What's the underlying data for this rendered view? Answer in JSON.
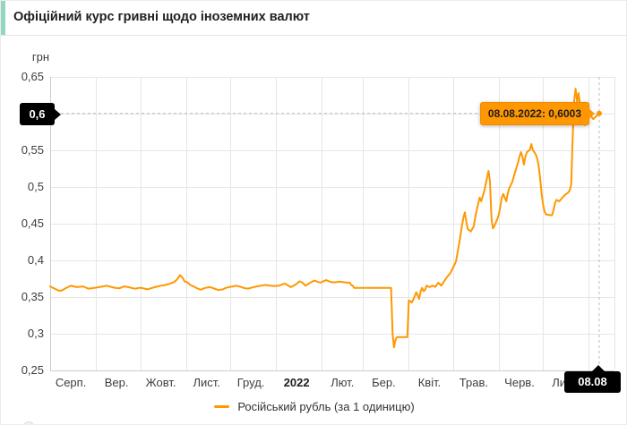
{
  "header": {
    "title": "Офіційний курс гривні щодо іноземних валют",
    "accent_color": "#93d7c2"
  },
  "crosshair": {
    "y_label": "0,6",
    "x_label": "08.08"
  },
  "tooltip": {
    "text": "08.08.2022: 0,6003",
    "bg_color": "#ff9800"
  },
  "legend": {
    "label": "Російський рубль (за 1 одиницю)",
    "color": "#ff9800"
  },
  "chart_data": {
    "type": "line",
    "title": "Офіційний курс гривні щодо іноземних валют",
    "ylabel": "грн",
    "xlabel": "",
    "ylim": [
      0.25,
      0.65
    ],
    "grid": true,
    "legend_position": "bottom",
    "x_unit": "days since 01.08.2021",
    "y_ticks": [
      {
        "v": 0.65,
        "label": "0,65"
      },
      {
        "v": 0.6,
        "label": "0,6"
      },
      {
        "v": 0.55,
        "label": "0,55"
      },
      {
        "v": 0.5,
        "label": "0,5"
      },
      {
        "v": 0.45,
        "label": "0,45"
      },
      {
        "v": 0.4,
        "label": "0,4"
      },
      {
        "v": 0.35,
        "label": "0,35"
      },
      {
        "v": 0.3,
        "label": "0,3"
      },
      {
        "v": 0.25,
        "label": "0,25"
      }
    ],
    "x_ticks": [
      {
        "day": 14,
        "label": "Серп."
      },
      {
        "day": 45,
        "label": "Вер."
      },
      {
        "day": 75,
        "label": "Жовт."
      },
      {
        "day": 106,
        "label": "Лист."
      },
      {
        "day": 136,
        "label": "Груд."
      },
      {
        "day": 167,
        "label": "2022",
        "bold": true
      },
      {
        "day": 198,
        "label": "Лют."
      },
      {
        "day": 226,
        "label": "Бер."
      },
      {
        "day": 257,
        "label": "Квіт."
      },
      {
        "day": 287,
        "label": "Трав."
      },
      {
        "day": 318,
        "label": "Черв."
      },
      {
        "day": 348,
        "label": "Лип."
      }
    ],
    "x_gridline_days": [
      31,
      61,
      92,
      122,
      153,
      184,
      212,
      243,
      273,
      304,
      334,
      365
    ],
    "final_point": {
      "date": "08.08.2022",
      "value": 0.6003,
      "day": 372
    },
    "series": [
      {
        "name": "Російський рубль (за 1 одиницю)",
        "color": "#ff9800",
        "points": [
          [
            0,
            0.3645
          ],
          [
            2,
            0.3625
          ],
          [
            4,
            0.3605
          ],
          [
            6,
            0.3585
          ],
          [
            8,
            0.359
          ],
          [
            10,
            0.3615
          ],
          [
            12,
            0.3635
          ],
          [
            14,
            0.3655
          ],
          [
            16,
            0.3645
          ],
          [
            18,
            0.3635
          ],
          [
            20,
            0.364
          ],
          [
            22,
            0.3645
          ],
          [
            24,
            0.363
          ],
          [
            26,
            0.3615
          ],
          [
            28,
            0.362
          ],
          [
            30,
            0.3625
          ],
          [
            33,
            0.3635
          ],
          [
            36,
            0.3645
          ],
          [
            38,
            0.3655
          ],
          [
            41,
            0.364
          ],
          [
            44,
            0.3625
          ],
          [
            47,
            0.362
          ],
          [
            50,
            0.3645
          ],
          [
            53,
            0.3635
          ],
          [
            56,
            0.362
          ],
          [
            58,
            0.3615
          ],
          [
            60,
            0.3625
          ],
          [
            62,
            0.3625
          ],
          [
            64,
            0.3615
          ],
          [
            66,
            0.3605
          ],
          [
            69,
            0.3625
          ],
          [
            72,
            0.364
          ],
          [
            75,
            0.3655
          ],
          [
            78,
            0.3665
          ],
          [
            81,
            0.368
          ],
          [
            84,
            0.3705
          ],
          [
            86,
            0.374
          ],
          [
            88,
            0.38
          ],
          [
            90,
            0.3755
          ],
          [
            91,
            0.3715
          ],
          [
            93,
            0.37
          ],
          [
            95,
            0.3665
          ],
          [
            98,
            0.3635
          ],
          [
            100,
            0.3615
          ],
          [
            102,
            0.36
          ],
          [
            105,
            0.3625
          ],
          [
            108,
            0.3635
          ],
          [
            110,
            0.3625
          ],
          [
            112,
            0.361
          ],
          [
            114,
            0.3595
          ],
          [
            117,
            0.3605
          ],
          [
            119,
            0.3625
          ],
          [
            121,
            0.3635
          ],
          [
            124,
            0.3645
          ],
          [
            126,
            0.3655
          ],
          [
            129,
            0.364
          ],
          [
            131,
            0.3625
          ],
          [
            134,
            0.3615
          ],
          [
            137,
            0.363
          ],
          [
            140,
            0.3645
          ],
          [
            143,
            0.3655
          ],
          [
            146,
            0.3665
          ],
          [
            149,
            0.3655
          ],
          [
            152,
            0.365
          ],
          [
            155,
            0.3655
          ],
          [
            157,
            0.367
          ],
          [
            159,
            0.3685
          ],
          [
            161,
            0.366
          ],
          [
            163,
            0.3635
          ],
          [
            165,
            0.3655
          ],
          [
            167,
            0.368
          ],
          [
            169,
            0.3715
          ],
          [
            171,
            0.3695
          ],
          [
            173,
            0.3655
          ],
          [
            175,
            0.368
          ],
          [
            177,
            0.3705
          ],
          [
            179,
            0.3725
          ],
          [
            181,
            0.371
          ],
          [
            183,
            0.3695
          ],
          [
            185,
            0.3715
          ],
          [
            187,
            0.373
          ],
          [
            189,
            0.3715
          ],
          [
            191,
            0.37
          ],
          [
            194,
            0.3705
          ],
          [
            196,
            0.371
          ],
          [
            198,
            0.3705
          ],
          [
            200,
            0.37
          ],
          [
            203,
            0.3695
          ],
          [
            204,
            0.3665
          ],
          [
            205,
            0.3655
          ],
          [
            206,
            0.3625
          ],
          [
            231,
            0.3625
          ],
          [
            232,
            0.3
          ],
          [
            233,
            0.2815
          ],
          [
            234,
            0.292
          ],
          [
            235,
            0.2955
          ],
          [
            242,
            0.2955
          ],
          [
            243,
            0.3455
          ],
          [
            244,
            0.344
          ],
          [
            245,
            0.3425
          ],
          [
            246,
            0.3465
          ],
          [
            248,
            0.3565
          ],
          [
            249,
            0.3525
          ],
          [
            250,
            0.3475
          ],
          [
            251,
            0.3575
          ],
          [
            252,
            0.3625
          ],
          [
            253,
            0.358
          ],
          [
            254,
            0.3595
          ],
          [
            255,
            0.3655
          ],
          [
            257,
            0.3635
          ],
          [
            259,
            0.3655
          ],
          [
            261,
            0.364
          ],
          [
            263,
            0.3695
          ],
          [
            265,
            0.3655
          ],
          [
            267,
            0.372
          ],
          [
            269,
            0.3775
          ],
          [
            271,
            0.3825
          ],
          [
            273,
            0.39
          ],
          [
            275,
            0.3985
          ],
          [
            277,
            0.421
          ],
          [
            279,
            0.447
          ],
          [
            280,
            0.4585
          ],
          [
            281,
            0.4655
          ],
          [
            282,
            0.452
          ],
          [
            283,
            0.4425
          ],
          [
            285,
            0.4395
          ],
          [
            287,
            0.4465
          ],
          [
            288,
            0.4585
          ],
          [
            289,
            0.4685
          ],
          [
            290,
            0.4775
          ],
          [
            291,
            0.4855
          ],
          [
            292,
            0.4805
          ],
          [
            293,
            0.487
          ],
          [
            294,
            0.4935
          ],
          [
            295,
            0.503
          ],
          [
            297,
            0.522
          ],
          [
            298,
            0.5075
          ],
          [
            299,
            0.4575
          ],
          [
            300,
            0.4435
          ],
          [
            301,
            0.447
          ],
          [
            303,
            0.4565
          ],
          [
            304,
            0.4625
          ],
          [
            305,
            0.4735
          ],
          [
            306,
            0.4855
          ],
          [
            307,
            0.4905
          ],
          [
            308,
            0.4855
          ],
          [
            309,
            0.4805
          ],
          [
            310,
            0.4905
          ],
          [
            311,
            0.4985
          ],
          [
            313,
            0.5065
          ],
          [
            315,
            0.5205
          ],
          [
            317,
            0.5335
          ],
          [
            318,
            0.5415
          ],
          [
            319,
            0.5475
          ],
          [
            320,
            0.5415
          ],
          [
            321,
            0.5305
          ],
          [
            322,
            0.5415
          ],
          [
            323,
            0.5475
          ],
          [
            325,
            0.5505
          ],
          [
            326,
            0.5585
          ],
          [
            327,
            0.5505
          ],
          [
            328,
            0.5475
          ],
          [
            329,
            0.5445
          ],
          [
            330,
            0.5385
          ],
          [
            331,
            0.5285
          ],
          [
            332,
            0.5105
          ],
          [
            333,
            0.4905
          ],
          [
            334,
            0.4755
          ],
          [
            335,
            0.4665
          ],
          [
            336,
            0.4625
          ],
          [
            340,
            0.4615
          ],
          [
            341,
            0.468
          ],
          [
            342,
            0.4775
          ],
          [
            343,
            0.4825
          ],
          [
            345,
            0.4805
          ],
          [
            347,
            0.4855
          ],
          [
            349,
            0.4895
          ],
          [
            351,
            0.4925
          ],
          [
            352,
            0.4955
          ],
          [
            353,
            0.503
          ],
          [
            354,
            0.565
          ],
          [
            355,
            0.617
          ],
          [
            356,
            0.634
          ],
          [
            357,
            0.6165
          ],
          [
            358,
            0.628
          ],
          [
            359,
            0.6115
          ],
          [
            360,
            0.6035
          ],
          [
            361,
            0.5925
          ],
          [
            362,
            0.5845
          ],
          [
            364,
            0.5905
          ],
          [
            366,
            0.5975
          ],
          [
            368,
            0.5925
          ],
          [
            370,
            0.5965
          ],
          [
            372,
            0.6003
          ]
        ]
      }
    ]
  }
}
